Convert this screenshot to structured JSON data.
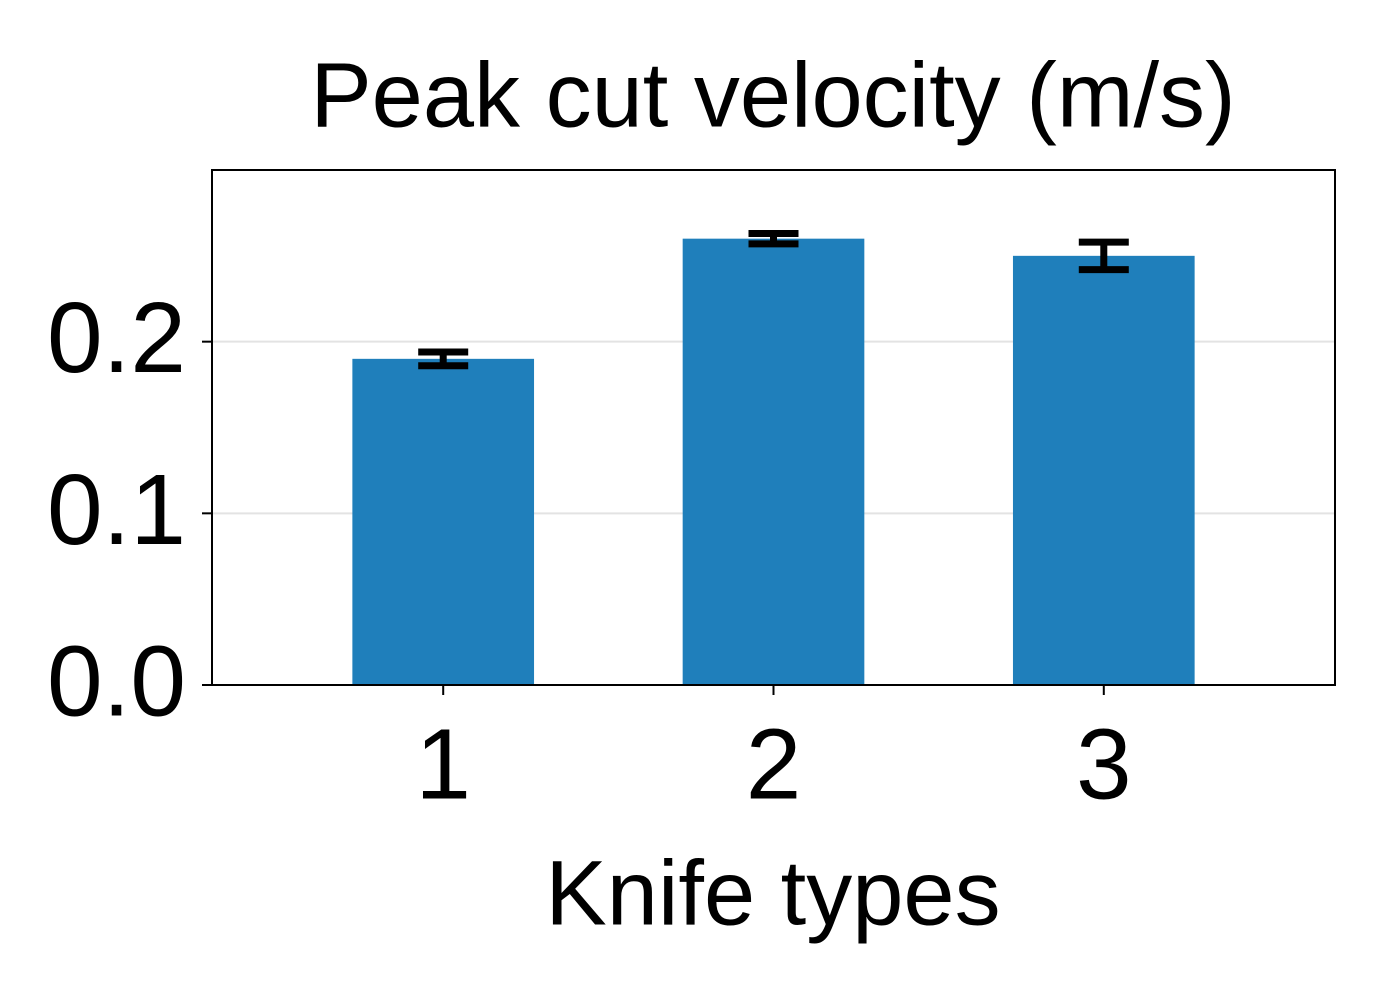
{
  "chart_data": {
    "type": "bar",
    "title": "Peak cut velocity (m/s)",
    "x_label": "Knife types",
    "categories": [
      "1",
      "2",
      "3"
    ],
    "values": [
      0.19,
      0.26,
      0.25
    ],
    "errors": [
      0.004,
      0.003,
      0.008
    ],
    "color": "#1f7fbb",
    "error_color": "#000000",
    "ylim": [
      0,
      0.3
    ],
    "yticks": [
      {
        "value": 0,
        "label": "0.0"
      },
      0.1,
      0.2
    ],
    "grid": true
  }
}
